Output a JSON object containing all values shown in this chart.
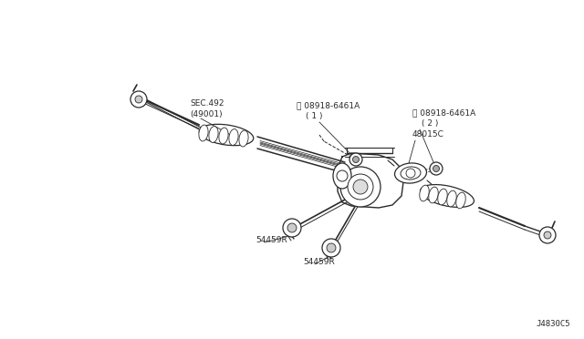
{
  "bg_color": "#ffffff",
  "line_color": "#2a2a2a",
  "diagram_code": "J4830C5",
  "label_sec492": "SEC.492\n(49001)",
  "label_n1": "Ⓝ 08918-6461A\n   ( 1 )",
  "label_n2": "Ⓝ 08918-6461A\n   ( 2 )",
  "label_48015c": "48015C",
  "label_54459r_1": "54459R",
  "label_54459r_2": "54459R",
  "fontsize_label": 6.5,
  "fontsize_code": 6.5
}
